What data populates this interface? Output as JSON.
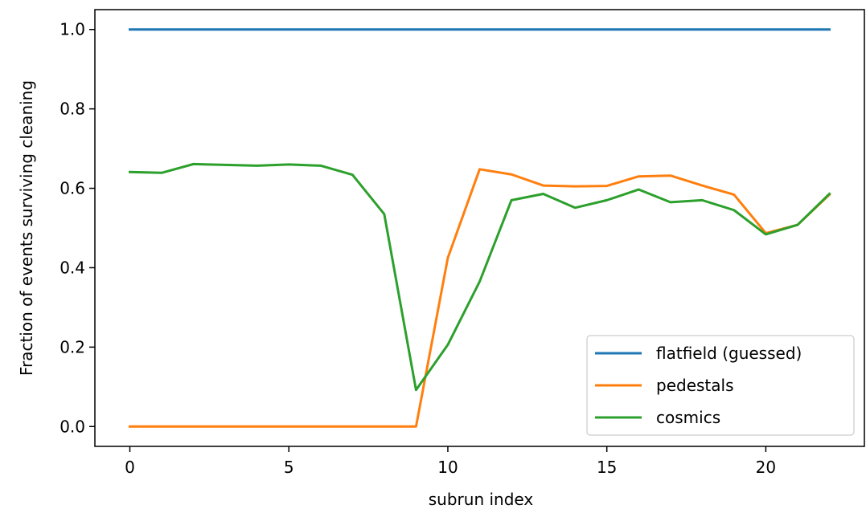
{
  "chart_data": {
    "type": "line",
    "title": "",
    "xlabel": "subrun index",
    "ylabel": "Fraction of events surviving cleaning",
    "xlim": [
      -1.1,
      23.1
    ],
    "ylim": [
      -0.05,
      1.05
    ],
    "xticks": [
      0,
      5,
      10,
      15,
      20
    ],
    "xtick_labels": [
      "0",
      "5",
      "10",
      "15",
      "20"
    ],
    "yticks": [
      0.0,
      0.2,
      0.4,
      0.6,
      0.8,
      1.0
    ],
    "ytick_labels": [
      "0.0",
      "0.2",
      "0.4",
      "0.6",
      "0.8",
      "1.0"
    ],
    "grid": false,
    "legend_position": "lower-right",
    "x": [
      0,
      1,
      2,
      3,
      4,
      5,
      6,
      7,
      8,
      9,
      10,
      11,
      12,
      13,
      14,
      15,
      16,
      17,
      18,
      19,
      20,
      21,
      22
    ],
    "series": [
      {
        "name": "flatfield (guessed)",
        "color": "#1f77b4",
        "values": [
          1.0,
          1.0,
          1.0,
          1.0,
          1.0,
          1.0,
          1.0,
          1.0,
          1.0,
          1.0,
          1.0,
          1.0,
          1.0,
          1.0,
          1.0,
          1.0,
          1.0,
          1.0,
          1.0,
          1.0,
          1.0,
          1.0,
          1.0
        ]
      },
      {
        "name": "pedestals",
        "color": "#ff7f0e",
        "values": [
          0,
          0,
          0,
          0,
          0,
          0,
          0,
          0,
          0,
          0,
          0.425,
          0.648,
          0.635,
          0.607,
          0.605,
          0.606,
          0.63,
          0.632,
          0.607,
          0.584,
          0.487,
          0.508,
          0.584
        ]
      },
      {
        "name": "cosmics",
        "color": "#2ca02c",
        "values": [
          0.641,
          0.639,
          0.661,
          0.659,
          0.657,
          0.66,
          0.657,
          0.634,
          0.535,
          0.092,
          0.206,
          0.365,
          0.57,
          0.586,
          0.551,
          0.57,
          0.597,
          0.565,
          0.57,
          0.545,
          0.484,
          0.508,
          0.586
        ]
      }
    ]
  }
}
